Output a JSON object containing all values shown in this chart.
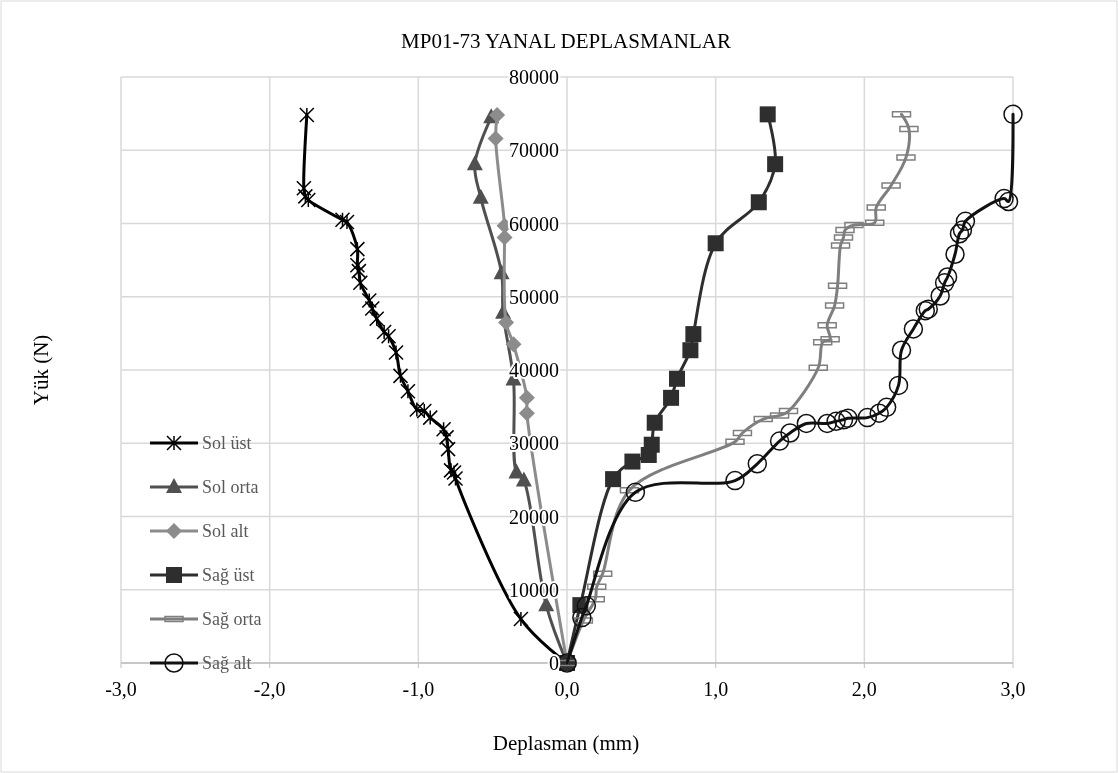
{
  "chart_data": {
    "type": "line",
    "title": "MP01-73 YANAL DEPLASMANLAR",
    "xlabel": "Deplasman (mm)",
    "ylabel": "Yük (N)",
    "xlim": [
      -3,
      3
    ],
    "xticks": [
      {
        "value": -3,
        "label": "-3,0"
      },
      {
        "value": -2,
        "label": "-2,0"
      },
      {
        "value": -1,
        "label": "-1,0"
      },
      {
        "value": 0,
        "label": "0,0"
      },
      {
        "value": 1,
        "label": "1,0"
      },
      {
        "value": 2,
        "label": "2,0"
      },
      {
        "value": 3,
        "label": "3,0"
      }
    ],
    "ylim": [
      0,
      80000
    ],
    "yticks": [
      0,
      10000,
      20000,
      30000,
      40000,
      50000,
      60000,
      70000,
      80000
    ],
    "grid": true,
    "legend": "bottom left",
    "series": [
      {
        "name": "Sol üst",
        "color": "#000000",
        "marker": "cross",
        "x": [
          0,
          -0.31,
          -0.75,
          -0.76,
          -0.78,
          -0.8,
          -0.81,
          -0.83,
          -0.92,
          -0.96,
          -1.01,
          -1.07,
          -1.12,
          -1.15,
          -1.2,
          -1.23,
          -1.28,
          -1.31,
          -1.33,
          -1.39,
          -1.4,
          -1.41,
          -1.41,
          -1.48,
          -1.51,
          -1.74,
          -1.76,
          -1.77,
          -1.75
        ],
        "values": [
          0,
          6000,
          25200,
          26000,
          26300,
          29200,
          30800,
          31900,
          33500,
          34400,
          34600,
          37100,
          39200,
          42400,
          44600,
          45200,
          47000,
          48400,
          49500,
          51900,
          53500,
          54300,
          56500,
          60200,
          60500,
          63200,
          63700,
          64800,
          74800
        ]
      },
      {
        "name": "Sol orta",
        "color": "#505050",
        "marker": "triangle",
        "x": [
          0,
          -0.14,
          -0.29,
          -0.34,
          -0.36,
          -0.43,
          -0.44,
          -0.58,
          -0.62,
          -0.51
        ],
        "values": [
          0,
          7900,
          24900,
          26000,
          38700,
          47800,
          53200,
          63500,
          68100,
          74500
        ]
      },
      {
        "name": "Sol alt",
        "color": "#8c8c8c",
        "marker": "diamond",
        "x": [
          0,
          -0.27,
          -0.27,
          -0.36,
          -0.41,
          -0.42,
          -0.42,
          -0.48,
          -0.47
        ],
        "values": [
          0,
          34100,
          36200,
          43500,
          46500,
          58100,
          59700,
          71600,
          74800
        ]
      },
      {
        "name": "Sağ üst",
        "color": "#2e2e2e",
        "marker": "square",
        "x": [
          0,
          0.09,
          0.31,
          0.44,
          0.55,
          0.57,
          0.59,
          0.7,
          0.74,
          0.83,
          0.85,
          1.0,
          1.29,
          1.4,
          1.35
        ],
        "values": [
          0,
          7900,
          25100,
          27500,
          28400,
          29800,
          32800,
          36200,
          38800,
          42700,
          44900,
          57300,
          62900,
          68100,
          74900
        ]
      },
      {
        "name": "Sağ orta",
        "color": "#7f7f7f",
        "x": [
          0,
          0.11,
          0.19,
          0.2,
          0.24,
          0.42,
          1.13,
          1.18,
          1.32,
          1.43,
          1.49,
          1.69,
          1.72,
          1.77,
          1.75,
          1.8,
          1.82,
          1.84,
          1.86,
          1.87,
          1.93,
          2.07,
          2.08,
          2.18,
          2.28,
          2.3,
          2.25
        ],
        "values": [
          0,
          5800,
          8700,
          10400,
          12200,
          23600,
          30200,
          31400,
          33300,
          33800,
          34400,
          40300,
          43800,
          44200,
          46100,
          48800,
          51500,
          57000,
          58100,
          59100,
          59800,
          60100,
          62200,
          65200,
          69000,
          72900,
          74900
        ]
      },
      {
        "name": "Sağ alt",
        "color": "#111111",
        "marker": "circle",
        "x": [
          0,
          0.1,
          0.13,
          0.46,
          1.13,
          1.28,
          1.43,
          1.5,
          1.61,
          1.75,
          1.81,
          1.86,
          1.89,
          2.02,
          2.1,
          2.15,
          2.23,
          2.25,
          2.33,
          2.41,
          2.43,
          2.51,
          2.54,
          2.56,
          2.61,
          2.64,
          2.66,
          2.68,
          2.94,
          2.97,
          3.0
        ],
        "values": [
          0,
          6200,
          7800,
          23300,
          24900,
          27200,
          30300,
          31400,
          32700,
          32700,
          33000,
          33200,
          33400,
          33500,
          34100,
          34900,
          37900,
          42700,
          45600,
          48100,
          48300,
          50100,
          51900,
          52700,
          55800,
          58600,
          59100,
          60300,
          63400,
          63000,
          74900
        ]
      }
    ]
  }
}
